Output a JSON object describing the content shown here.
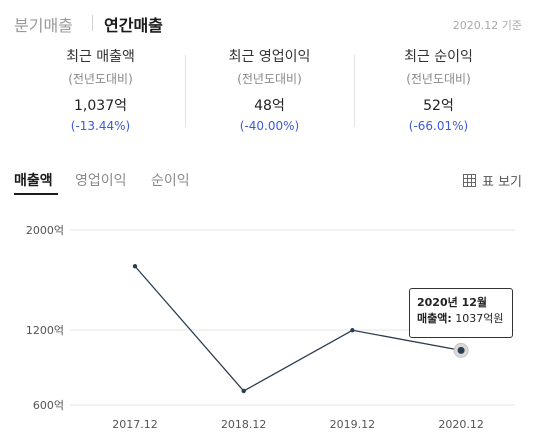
{
  "header": {
    "tabs": [
      {
        "label": "분기매출",
        "active": false
      },
      {
        "label": "연간매출",
        "active": true
      }
    ],
    "base_date": "2020.12 기준"
  },
  "summary": [
    {
      "title": "최근 매출액",
      "sub": "(전년도대비)",
      "value": "1,037억",
      "change": "(-13.44%)"
    },
    {
      "title": "최근 영업이익",
      "sub": "(전년도대비)",
      "value": "48억",
      "change": "(-40.00%)"
    },
    {
      "title": "최근 순이익",
      "sub": "(전년도대비)",
      "value": "52억",
      "change": "(-66.01%)"
    }
  ],
  "metric_tabs": [
    {
      "label": "매출액",
      "active": true
    },
    {
      "label": "영업이익",
      "active": false
    },
    {
      "label": "순이익",
      "active": false
    }
  ],
  "table_view": {
    "label": "표 보기",
    "icon": "table-icon"
  },
  "colors": {
    "accent_blue": "#3e5bd6",
    "line": "#2b3d4f",
    "gridline": "#e6e6e6"
  },
  "chart_data": {
    "type": "line",
    "categories": [
      "2017.12",
      "2018.12",
      "2019.12",
      "2020.12"
    ],
    "values": [
      1710,
      712,
      1198,
      1037
    ],
    "y_tick_labels": [
      "2000억",
      "1200억",
      "600억"
    ],
    "y_ticks": [
      2000,
      1200,
      600
    ],
    "ylim": [
      600,
      2000
    ],
    "grid": true,
    "highlight_index": 3
  },
  "tooltip": {
    "title": "2020년 12월",
    "label": "매출액:",
    "value": "1037억원"
  }
}
